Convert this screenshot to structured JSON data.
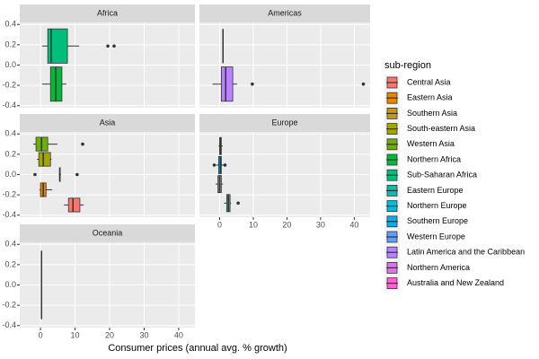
{
  "chart_data": {
    "type": "boxplot",
    "x_label": "Consumer prices (annual avg. % growth)",
    "legend_title": "sub-region",
    "facets": [
      "Africa",
      "Americas",
      "Asia",
      "Europe",
      "Oceania"
    ],
    "xlim": [
      -6,
      44.7
    ],
    "xticks": [
      0,
      10,
      20,
      30,
      40
    ],
    "ylim": [
      -0.42,
      0.42
    ],
    "yticks": [
      -0.4,
      -0.2,
      {
        "value": 0,
        "label": "0.0"
      },
      0.2,
      0.4
    ],
    "grid": true,
    "series": [
      {
        "name": "Central Asia",
        "color": "#F8766D",
        "facet": 2,
        "min": 6.8,
        "q1": 8.1,
        "median": 9.4,
        "q3": 11.4,
        "max": 12.5,
        "outliers": []
      },
      {
        "name": "Eastern Asia",
        "color": "#E58700",
        "facet": 2,
        "min": -0.3,
        "q1": 0,
        "median": 0.8,
        "q3": 1.6,
        "max": 3.4,
        "outliers": []
      },
      {
        "name": "Southern Asia",
        "color": "#C99800",
        "facet": 2,
        "min": 5.3,
        "q1": 5.5,
        "median": 5.6,
        "q3": 5.7,
        "max": 5.9,
        "outliers": [
          -1.6,
          10.6
        ]
      },
      {
        "name": "South-eastern Asia",
        "color": "#A3A500",
        "facet": 2,
        "min": -1.0,
        "q1": -0.5,
        "median": 0.8,
        "q3": 2.9,
        "max": 3.2,
        "outliers": []
      },
      {
        "name": "Western Asia",
        "color": "#6BB100",
        "facet": 2,
        "min": -2.1,
        "q1": -1.3,
        "median": 0.3,
        "q3": 2.1,
        "max": 4.9,
        "outliers": [
          12.2
        ]
      },
      {
        "name": "Northern Africa",
        "color": "#00BA38",
        "facet": 0,
        "min": 0.5,
        "q1": 2.9,
        "median": 4.4,
        "q3": 6.2,
        "max": 7.5,
        "outliers": []
      },
      {
        "name": "Sub-Saharan Africa",
        "color": "#00BF7D",
        "facet": 0,
        "min": 0.5,
        "q1": 2.1,
        "median": 3.1,
        "q3": 7.8,
        "max": 11.2,
        "outliers": [
          19.5,
          21.3
        ]
      },
      {
        "name": "Eastern Europe",
        "color": "#00C0AF",
        "facet": 3,
        "min": 1.3,
        "q1": 2.1,
        "median": 2.6,
        "q3": 3.1,
        "max": 3.4,
        "outliers": [
          5.5
        ]
      },
      {
        "name": "Northern Europe",
        "color": "#00BCD8",
        "facet": 3,
        "min": -1.2,
        "q1": -0.5,
        "median": 0,
        "q3": 0.5,
        "max": 1.0,
        "outliers": []
      },
      {
        "name": "Southern Europe",
        "color": "#00B0F6",
        "facet": 3,
        "min": -1.0,
        "q1": -0.3,
        "median": 0.2,
        "q3": 0.5,
        "max": 1.2,
        "outliers": [
          -1.6,
          1.6
        ]
      },
      {
        "name": "Western Europe",
        "color": "#619CFF",
        "facet": 3,
        "min": -0.3,
        "q1": 0,
        "median": 0.2,
        "q3": 0.5,
        "max": 0.9,
        "outliers": []
      },
      {
        "name": "Latin America and the Caribbean",
        "color": "#B983FF",
        "facet": 1,
        "min": -2.1,
        "q1": 0.5,
        "median": 1.8,
        "q3": 3.9,
        "max": 5.2,
        "outliers": [
          9.7,
          42.7
        ]
      },
      {
        "name": "Northern America",
        "color": "#E76BF3",
        "facet": 1,
        "min": 1.0,
        "q1": 1.0,
        "median": 1.0,
        "q3": 1.0,
        "max": 1.0,
        "outliers": []
      },
      {
        "name": "Australia and New Zealand",
        "color": "#FD61D1",
        "facet": 4,
        "min": 0.3,
        "q1": 0.3,
        "median": 0.3,
        "q3": 0.3,
        "max": 0.3,
        "outliers": []
      }
    ]
  }
}
